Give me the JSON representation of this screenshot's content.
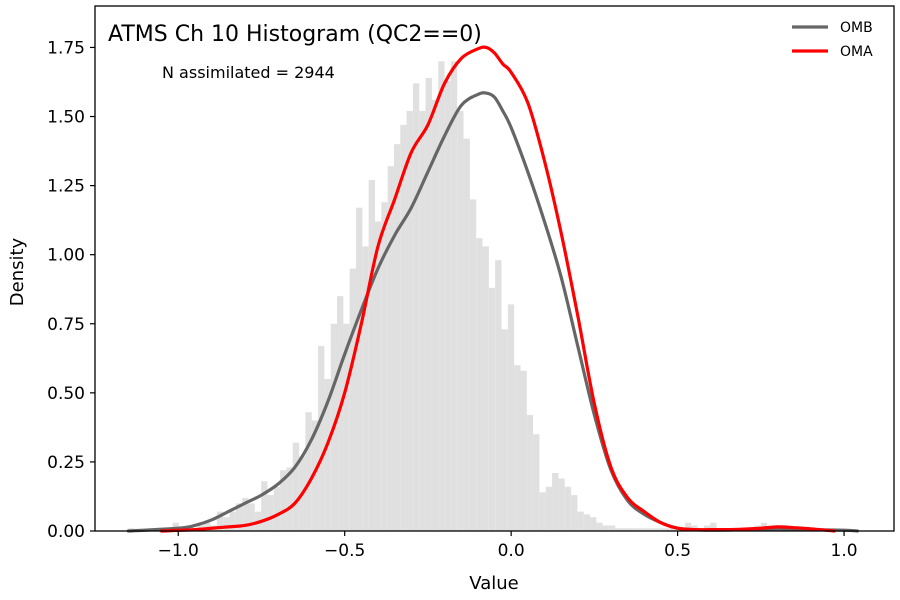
{
  "chart_data": {
    "type": "histogram",
    "title": "ATMS Ch 10 Histogram (QC2==0)",
    "annotation": "N assimilated = 2944",
    "xlabel": "Value",
    "ylabel": "Density",
    "xlim": [
      -1.25,
      1.15
    ],
    "ylim": [
      0,
      1.9
    ],
    "xticks": [
      -1.0,
      -0.5,
      0.0,
      0.5,
      1.0
    ],
    "xtick_labels": [
      "−1.0",
      "−0.5",
      "0.0",
      "0.5",
      "1.0"
    ],
    "yticks": [
      0,
      0.25,
      0.5,
      0.75,
      1.0,
      1.25,
      1.5,
      1.75
    ],
    "ytick_labels": [
      "0.00",
      "0.25",
      "0.50",
      "0.75",
      "1.00",
      "1.25",
      "1.50",
      "1.75"
    ],
    "legend_position": "top-right",
    "grid": false,
    "histogram": {
      "color": "#e0e0e0",
      "bin_start": -1.15,
      "bin_width": 0.019,
      "densities": [
        0.01,
        0,
        0,
        0,
        0,
        0,
        0,
        0.03,
        0,
        0,
        0.01,
        0.02,
        0.03,
        0.02,
        0.07,
        0.05,
        0.07,
        0.1,
        0.12,
        0.1,
        0.07,
        0.18,
        0.13,
        0.16,
        0.22,
        0.23,
        0.32,
        0.27,
        0.43,
        0.4,
        0.67,
        0.55,
        0.75,
        0.85,
        0.75,
        0.95,
        1.17,
        1.03,
        1.27,
        1.12,
        1.19,
        1.32,
        1.4,
        1.47,
        1.52,
        1.62,
        1.52,
        1.64,
        1.56,
        1.7,
        1.63,
        1.7,
        1.52,
        1.42,
        1.2,
        1.06,
        1.03,
        0.88,
        0.98,
        0.73,
        0.82,
        0.6,
        0.58,
        0.42,
        0.35,
        0.14,
        0.16,
        0.21,
        0.19,
        0.16,
        0.13,
        0.07,
        0.06,
        0.05,
        0.03,
        0.02,
        0.02,
        0.01,
        0.01,
        0.01,
        0.01,
        0.01,
        0.01,
        0.01,
        0.01,
        0.01,
        0.01,
        0.01,
        0.03,
        0.02,
        0.01,
        0.02,
        0.03,
        0.01,
        0.01,
        0.01,
        0.01,
        0.01,
        0.01,
        0.02,
        0.03,
        0.01,
        0.01,
        0.01,
        0.01,
        0.01,
        0.01,
        0.0
      ]
    },
    "series": [
      {
        "name": "OMB",
        "color": "#666666",
        "x": [
          -1.15,
          -1.0,
          -0.95,
          -0.9,
          -0.85,
          -0.8,
          -0.75,
          -0.7,
          -0.65,
          -0.6,
          -0.55,
          -0.5,
          -0.45,
          -0.4,
          -0.35,
          -0.3,
          -0.25,
          -0.2,
          -0.15,
          -0.1,
          -0.075,
          -0.05,
          -0.025,
          0.0,
          0.05,
          0.1,
          0.15,
          0.2,
          0.25,
          0.3,
          0.35,
          0.4,
          0.45,
          0.5,
          0.55,
          0.6,
          0.7,
          0.8,
          0.9,
          1.0,
          1.04
        ],
        "y": [
          0.0,
          0.01,
          0.02,
          0.04,
          0.07,
          0.1,
          0.13,
          0.17,
          0.23,
          0.33,
          0.47,
          0.64,
          0.8,
          0.95,
          1.07,
          1.17,
          1.3,
          1.43,
          1.54,
          1.58,
          1.585,
          1.57,
          1.52,
          1.46,
          1.3,
          1.12,
          0.92,
          0.67,
          0.42,
          0.22,
          0.11,
          0.06,
          0.03,
          0.01,
          0.005,
          0.003,
          0.005,
          0.008,
          0.005,
          0.003,
          0.0
        ]
      },
      {
        "name": "OMA",
        "color": "#ff0000",
        "x": [
          -1.05,
          -0.95,
          -0.9,
          -0.85,
          -0.8,
          -0.75,
          -0.7,
          -0.65,
          -0.6,
          -0.55,
          -0.5,
          -0.45,
          -0.4,
          -0.35,
          -0.3,
          -0.25,
          -0.2,
          -0.15,
          -0.1,
          -0.075,
          -0.05,
          -0.025,
          0.0,
          0.05,
          0.1,
          0.15,
          0.2,
          0.25,
          0.3,
          0.35,
          0.4,
          0.45,
          0.5,
          0.55,
          0.6,
          0.65,
          0.7,
          0.75,
          0.8,
          0.85,
          0.9,
          0.97
        ],
        "y": [
          0.0,
          0.005,
          0.01,
          0.015,
          0.02,
          0.035,
          0.06,
          0.1,
          0.19,
          0.32,
          0.5,
          0.75,
          1.03,
          1.2,
          1.37,
          1.47,
          1.62,
          1.71,
          1.745,
          1.75,
          1.73,
          1.69,
          1.66,
          1.55,
          1.34,
          1.08,
          0.78,
          0.46,
          0.23,
          0.12,
          0.07,
          0.03,
          0.01,
          0.005,
          0.005,
          0.005,
          0.007,
          0.01,
          0.015,
          0.012,
          0.008,
          0.0
        ]
      }
    ]
  }
}
